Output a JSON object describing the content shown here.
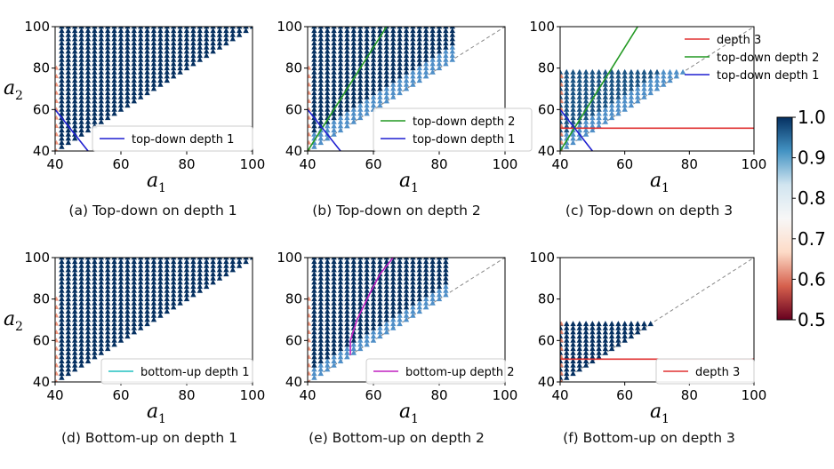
{
  "chart_data": [
    {
      "type": "scatter",
      "caption": "(a) Top-down on depth 1",
      "xlabel": "a",
      "xlabel_sub": "1",
      "ylabel": "a",
      "ylabel_sub": "2",
      "xlim": [
        40,
        100
      ],
      "ylim": [
        40,
        100
      ],
      "xticks": [
        "40",
        "60",
        "80",
        "100"
      ],
      "yticks": [
        "40",
        "60",
        "80",
        "100"
      ],
      "region": {
        "x_max": 100,
        "y_max": 100,
        "band": 0,
        "x_start": 42,
        "value": 1.0
      },
      "diagonal": false,
      "lines": [
        {
          "name": "top-down depth 1",
          "color": "#1f1fd0",
          "points": [
            [
              40,
              60
            ],
            [
              50,
              40
            ]
          ]
        }
      ],
      "legend": {
        "placement": "lower-right",
        "entries": [
          {
            "label": "top-down depth 1",
            "color": "#1f1fd0"
          }
        ]
      }
    },
    {
      "type": "scatter",
      "caption": "(b) Top-down on depth 2",
      "xlabel": "a",
      "xlabel_sub": "1",
      "ylabel": "a",
      "ylabel_sub": "2",
      "xlim": [
        40,
        100
      ],
      "ylim": [
        40,
        100
      ],
      "xticks": [
        "40",
        "60",
        "80",
        "100"
      ],
      "yticks": [
        "40",
        "60",
        "80",
        "100"
      ],
      "region": {
        "x_max": 85,
        "y_max": 100,
        "band": 6,
        "x_start": 42,
        "value": 1.0
      },
      "diagonal": true,
      "lines": [
        {
          "name": "top-down depth 2",
          "color": "#229922",
          "points": [
            [
              40,
              40
            ],
            [
              64,
              100
            ]
          ]
        },
        {
          "name": "top-down depth 1",
          "color": "#1f1fd0",
          "points": [
            [
              40,
              60
            ],
            [
              50,
              40
            ]
          ]
        }
      ],
      "legend": {
        "placement": "lower-right",
        "entries": [
          {
            "label": "top-down depth 2",
            "color": "#229922"
          },
          {
            "label": "top-down depth 1",
            "color": "#1f1fd0"
          }
        ]
      }
    },
    {
      "type": "scatter",
      "caption": "(c) Top-down on depth 3",
      "xlabel": "a",
      "xlabel_sub": "1",
      "ylabel": "a",
      "ylabel_sub": "2",
      "xlim": [
        40,
        100
      ],
      "ylim": [
        40,
        100
      ],
      "xticks": [
        "40",
        "60",
        "80",
        "100"
      ],
      "yticks": [
        "40",
        "60",
        "80",
        "100"
      ],
      "region": {
        "x_max": 78,
        "y_max": 78,
        "band": 6,
        "x_start": 40,
        "value": 0.97
      },
      "diagonal": true,
      "lines": [
        {
          "name": "depth 3",
          "color": "#e03030",
          "points": [
            [
              40,
              51
            ],
            [
              100,
              51
            ]
          ]
        },
        {
          "name": "top-down depth 2",
          "color": "#229922",
          "points": [
            [
              40,
              40
            ],
            [
              64,
              100
            ]
          ]
        },
        {
          "name": "top-down depth 1",
          "color": "#1f1fd0",
          "points": [
            [
              40,
              60
            ],
            [
              50,
              40
            ]
          ]
        }
      ],
      "legend": {
        "placement": "upper-right-outside",
        "entries": [
          {
            "label": "depth 3",
            "color": "#e03030"
          },
          {
            "label": "top-down depth 2",
            "color": "#229922"
          },
          {
            "label": "top-down depth 1",
            "color": "#1f1fd0"
          }
        ]
      }
    },
    {
      "type": "scatter",
      "caption": "(d) Bottom-up on depth 1",
      "xlabel": "a",
      "xlabel_sub": "1",
      "ylabel": "a",
      "ylabel_sub": "2",
      "xlim": [
        40,
        100
      ],
      "ylim": [
        40,
        100
      ],
      "xticks": [
        "40",
        "60",
        "80",
        "100"
      ],
      "yticks": [
        "40",
        "60",
        "80",
        "100"
      ],
      "region": {
        "x_max": 100,
        "y_max": 100,
        "band": 0,
        "x_start": 42,
        "value": 1.0
      },
      "diagonal": false,
      "lines": [],
      "legend": {
        "placement": "lower-right",
        "entries": [
          {
            "label": "bottom-up depth 1",
            "color": "#20c0c0"
          }
        ]
      }
    },
    {
      "type": "scatter",
      "caption": "(e) Bottom-up on depth 2",
      "xlabel": "a",
      "xlabel_sub": "1",
      "ylabel": "a",
      "ylabel_sub": "2",
      "xlim": [
        40,
        100
      ],
      "ylim": [
        40,
        100
      ],
      "xticks": [
        "40",
        "60",
        "80",
        "100"
      ],
      "yticks": [
        "40",
        "60",
        "80",
        "100"
      ],
      "region": {
        "x_max": 83,
        "y_max": 100,
        "band": 5,
        "x_start": 42,
        "value": 1.0
      },
      "diagonal": true,
      "lines": [
        {
          "name": "bottom-up depth 2",
          "color": "#c020c0",
          "points": [
            [
              53,
              53
            ],
            [
              53,
              60
            ],
            [
              55,
              70
            ],
            [
              59,
              83
            ],
            [
              62,
              92
            ],
            [
              66,
              100
            ]
          ]
        }
      ],
      "legend": {
        "placement": "lower-right",
        "entries": [
          {
            "label": "bottom-up depth 2",
            "color": "#c020c0"
          }
        ]
      }
    },
    {
      "type": "scatter",
      "caption": "(f) Bottom-up on depth 3",
      "xlabel": "a",
      "xlabel_sub": "1",
      "ylabel": "a",
      "ylabel_sub": "2",
      "xlim": [
        40,
        100
      ],
      "ylim": [
        40,
        100
      ],
      "xticks": [
        "40",
        "60",
        "80",
        "100"
      ],
      "yticks": [
        "40",
        "60",
        "80",
        "100"
      ],
      "region": {
        "x_max": 68,
        "y_max": 68,
        "band": 0,
        "x_start": 40,
        "value": 1.0
      },
      "diagonal": true,
      "lines": [
        {
          "name": "depth 3",
          "color": "#e03030",
          "points": [
            [
              40,
              51
            ],
            [
              100,
              51
            ]
          ]
        }
      ],
      "legend": {
        "placement": "lower-right",
        "entries": [
          {
            "label": "depth 3",
            "color": "#e03030"
          }
        ]
      }
    }
  ],
  "colorbar": {
    "range": [
      0.5,
      1.0
    ],
    "ticks": [
      "1.0",
      "0.9",
      "0.8",
      "0.7",
      "0.6",
      "0.5"
    ],
    "colormap": [
      "#67001f",
      "#d6604d",
      "#fddbc7",
      "#f7f7f7",
      "#d1e5f0",
      "#4393c3",
      "#053061"
    ]
  },
  "colors": {
    "marker": "#0b3c6e",
    "marker_light": "#4f8fc8",
    "marker_edge": "#f08060",
    "diagonal": "#888888"
  }
}
